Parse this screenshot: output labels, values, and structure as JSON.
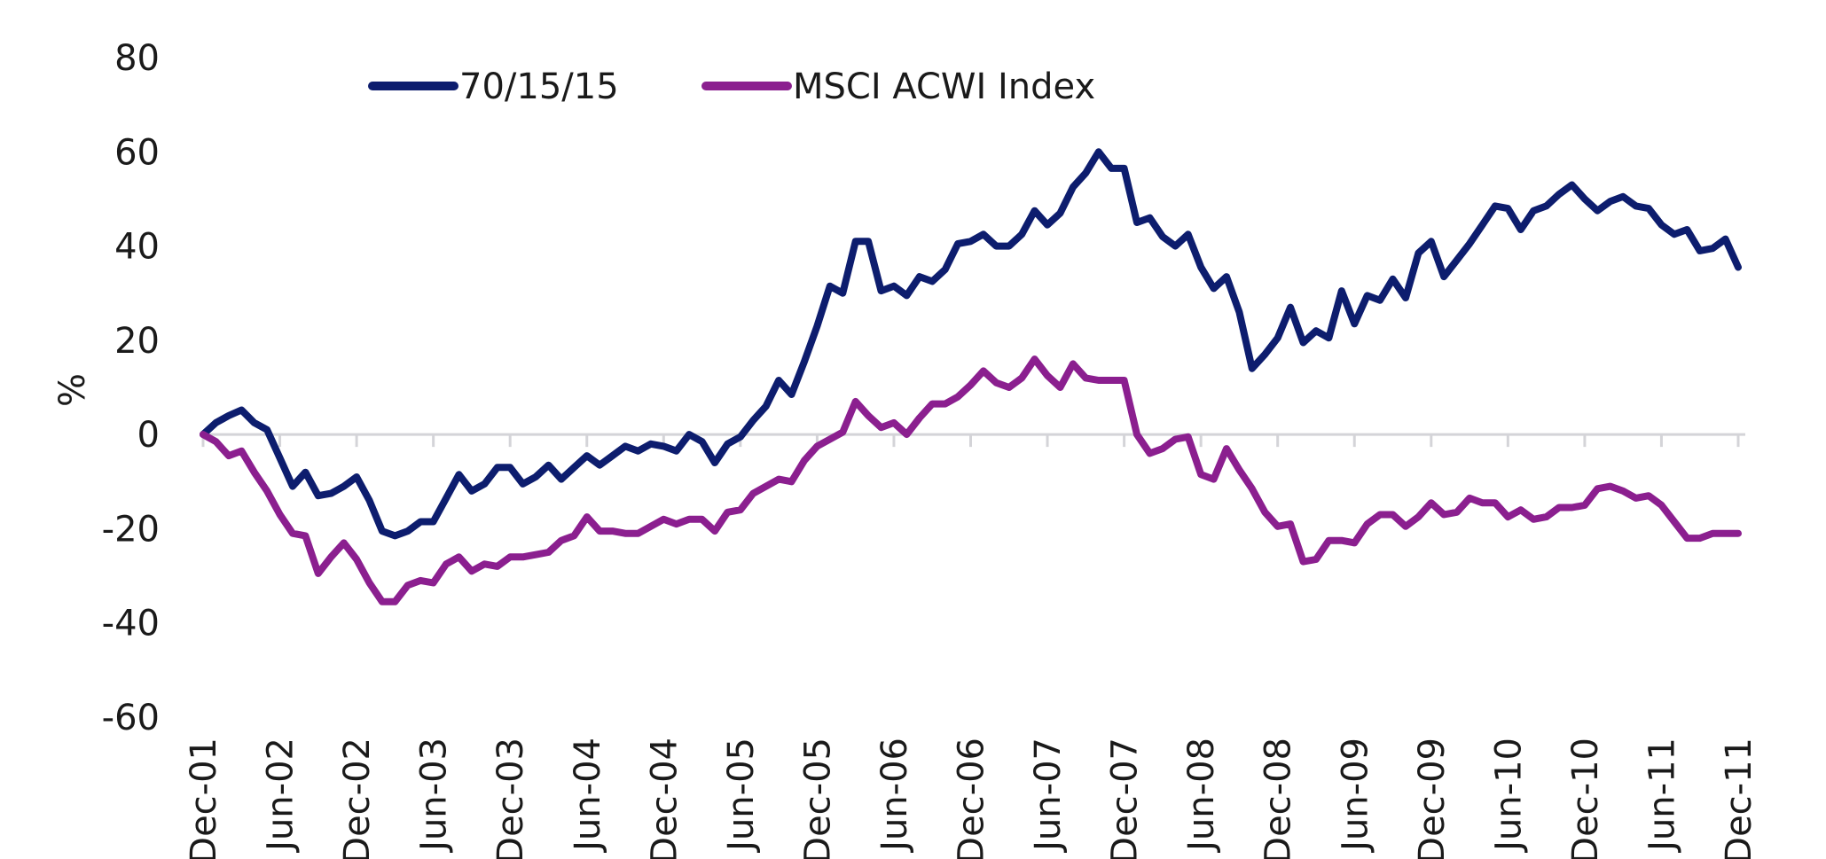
{
  "chart_data": {
    "type": "line",
    "title": "",
    "xlabel": "",
    "ylabel": "%",
    "ylim": [
      -60,
      80
    ],
    "yticks": [
      80,
      60,
      40,
      20,
      0,
      -20,
      -40,
      -60
    ],
    "ytick_labels": [
      "80",
      "60",
      "40",
      "20",
      "0",
      "-20",
      "-40",
      "-60"
    ],
    "x_tick_labels": [
      "Dec-01",
      "Jun-02",
      "Dec-02",
      "Jun-03",
      "Dec-03",
      "Jun-04",
      "Dec-04",
      "Jun-05",
      "Dec-05",
      "Jun-06",
      "Dec-06",
      "Jun-07",
      "Dec-07",
      "Jun-08",
      "Dec-08",
      "Jun-09",
      "Dec-09",
      "Jun-10",
      "Dec-10",
      "Jun-11",
      "Dec-11"
    ],
    "grid": false,
    "legend_position": "top",
    "series": [
      {
        "name": "70/15/15",
        "color": "#0d1d6e",
        "values": [
          0,
          2.5,
          4,
          5.2,
          2.5,
          1,
          -5,
          -11,
          -8,
          -13,
          -12.5,
          -11,
          -9,
          -14,
          -20.5,
          -21.5,
          -20.5,
          -18.5,
          -18.5,
          -13.5,
          -8.5,
          -12,
          -10.5,
          -7,
          -7,
          -10.5,
          -9,
          -6.5,
          -9.5,
          -7,
          -4.5,
          -6.5,
          -4.5,
          -2.5,
          -3.5,
          -2,
          -2.5,
          -3.5,
          0,
          -1.5,
          -6,
          -2,
          -0.5,
          3,
          6,
          11.5,
          8.5,
          15.5,
          23,
          31.5,
          30,
          41,
          41,
          30.5,
          31.5,
          29.5,
          33.5,
          32.5,
          35,
          40.5,
          41,
          42.5,
          40,
          40,
          42.5,
          47.5,
          44.5,
          47,
          52.5,
          55.5,
          60,
          56.5,
          56.5,
          45,
          46,
          42,
          40,
          42.5,
          35.5,
          31,
          33.5,
          26,
          14,
          17,
          20.5,
          27,
          19.5,
          22,
          20.5,
          30.5,
          23.5,
          29.5,
          28.5,
          33,
          29,
          38.5,
          41,
          33.5,
          37,
          40.5,
          44.5,
          48.5,
          48,
          43.5,
          47.5,
          48.5,
          51,
          53,
          50,
          47.5,
          49.5,
          50.5,
          48.5,
          48,
          44.5,
          42.5,
          43.5,
          39,
          39.5,
          41.5,
          35.5
        ]
      },
      {
        "name": "MSCI ACWI Index",
        "color": "#8b1f8f",
        "values": [
          0,
          -1.5,
          -4.5,
          -3.5,
          -8,
          -12,
          -17,
          -21,
          -21.5,
          -29.5,
          -26,
          -23,
          -26.5,
          -31.5,
          -35.5,
          -35.5,
          -32,
          -31,
          -31.5,
          -27.5,
          -26,
          -29,
          -27.5,
          -28,
          -26,
          -26,
          -25.5,
          -25,
          -22.5,
          -21.5,
          -17.5,
          -20.5,
          -20.5,
          -21,
          -21,
          -19.5,
          -18,
          -19,
          -18,
          -18,
          -20.5,
          -16.5,
          -16,
          -12.5,
          -11,
          -9.5,
          -10,
          -5.5,
          -2.5,
          -1,
          0.5,
          7,
          4,
          1.5,
          2.5,
          0,
          3.5,
          6.5,
          6.5,
          8,
          10.5,
          13.5,
          11,
          10,
          12,
          16,
          12.5,
          10,
          15,
          12,
          11.5,
          11.5,
          11.5,
          0,
          -4,
          -3,
          -1,
          -0.5,
          -8.5,
          -9.5,
          -3,
          -7.5,
          -11.5,
          -16.5,
          -19.5,
          -19,
          -27,
          -26.5,
          -22.5,
          -22.5,
          -23,
          -19,
          -17,
          -17,
          -19.5,
          -17.5,
          -14.5,
          -17,
          -16.5,
          -13.5,
          -14.5,
          -14.5,
          -17.5,
          -16,
          -18,
          -17.5,
          -15.5,
          -15.5,
          -15,
          -11.5,
          -11,
          -12,
          -13.5,
          -13,
          -15,
          -18.5,
          -22,
          -22,
          -21,
          -21,
          -21
        ]
      }
    ]
  }
}
